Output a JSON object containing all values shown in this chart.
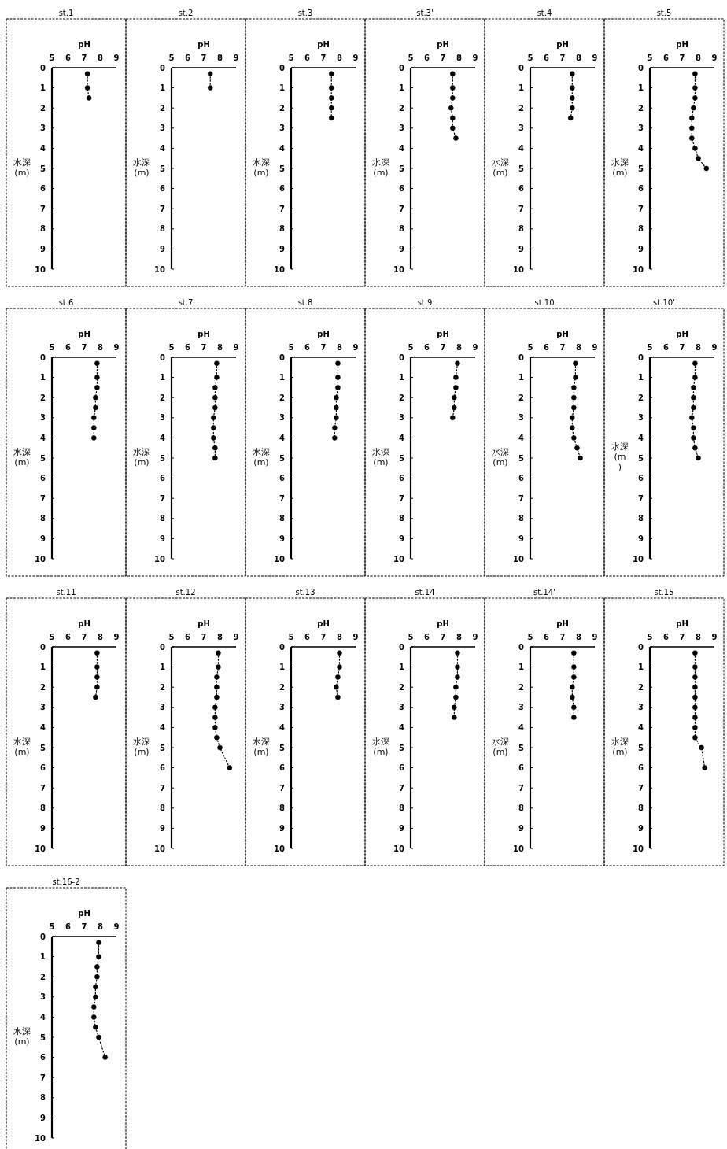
{
  "chart_data": [
    {
      "type": "line",
      "title": "st.1",
      "xlabel": "pH",
      "ylabel": "水深\n(m)",
      "xlim": [
        5,
        9
      ],
      "xticks": [
        5,
        6,
        7,
        8,
        9
      ],
      "ylim": [
        10,
        0
      ],
      "yticks": [
        0,
        1,
        2,
        3,
        4,
        5,
        6,
        7,
        8,
        9,
        10
      ],
      "marker": "circle",
      "line_style": "dotted",
      "series": [
        {
          "color": "#000000",
          "x": [
            7.2,
            7.2,
            7.3
          ],
          "values": [
            0.3,
            1,
            1.5
          ]
        }
      ]
    },
    {
      "type": "line",
      "title": "st.2",
      "xlabel": "pH",
      "ylabel": "水深\n(m)",
      "xlim": [
        5,
        9
      ],
      "xticks": [
        5,
        6,
        7,
        8,
        9
      ],
      "ylim": [
        10,
        0
      ],
      "yticks": [
        0,
        1,
        2,
        3,
        4,
        5,
        6,
        7,
        8,
        9,
        10
      ],
      "marker": "circle",
      "line_style": "dotted",
      "series": [
        {
          "color": "#000000",
          "x": [
            7.4,
            7.4
          ],
          "values": [
            0.3,
            1
          ]
        }
      ]
    },
    {
      "type": "line",
      "title": "st.3",
      "xlabel": "pH",
      "ylabel": "水深\n(m)",
      "xlim": [
        5,
        9
      ],
      "xticks": [
        5,
        6,
        7,
        8,
        9
      ],
      "ylim": [
        10,
        0
      ],
      "yticks": [
        0,
        1,
        2,
        3,
        4,
        5,
        6,
        7,
        8,
        9,
        10
      ],
      "marker": "circle",
      "line_style": "dotted",
      "series": [
        {
          "color": "#000000",
          "x": [
            7.5,
            7.5,
            7.5,
            7.5,
            7.5
          ],
          "values": [
            0.3,
            1,
            1.5,
            2,
            2.5
          ]
        }
      ]
    },
    {
      "type": "line",
      "title": "st.3'",
      "xlabel": "pH",
      "ylabel": "水深\n(m)",
      "xlim": [
        5,
        9
      ],
      "xticks": [
        5,
        6,
        7,
        8,
        9
      ],
      "ylim": [
        10,
        0
      ],
      "yticks": [
        0,
        1,
        2,
        3,
        4,
        5,
        6,
        7,
        8,
        9,
        10
      ],
      "marker": "circle",
      "line_style": "dotted",
      "series": [
        {
          "color": "#000000",
          "x": [
            7.6,
            7.6,
            7.6,
            7.5,
            7.6,
            7.6,
            7.8
          ],
          "values": [
            0.3,
            1,
            1.5,
            2,
            2.5,
            3,
            3.5
          ]
        }
      ]
    },
    {
      "type": "line",
      "title": "st.4",
      "xlabel": "pH",
      "ylabel": "水深\n(m)",
      "xlim": [
        5,
        9
      ],
      "xticks": [
        5,
        6,
        7,
        8,
        9
      ],
      "ylim": [
        10,
        0
      ],
      "yticks": [
        0,
        1,
        2,
        3,
        4,
        5,
        6,
        7,
        8,
        9,
        10
      ],
      "marker": "circle",
      "line_style": "dotted",
      "series": [
        {
          "color": "#000000",
          "x": [
            7.6,
            7.6,
            7.6,
            7.6,
            7.5
          ],
          "values": [
            0.3,
            1,
            1.5,
            2,
            2.5
          ]
        }
      ]
    },
    {
      "type": "line",
      "title": "st.5",
      "xlabel": "pH",
      "ylabel": "水深\n(m)",
      "xlim": [
        5,
        9
      ],
      "xticks": [
        5,
        6,
        7,
        8,
        9
      ],
      "ylim": [
        10,
        0
      ],
      "yticks": [
        0,
        1,
        2,
        3,
        4,
        5,
        6,
        7,
        8,
        9,
        10
      ],
      "marker": "circle",
      "line_style": "dotted",
      "series": [
        {
          "color": "#000000",
          "x": [
            7.8,
            7.8,
            7.8,
            7.7,
            7.6,
            7.6,
            7.6,
            7.8,
            8.0,
            8.5
          ],
          "values": [
            0.3,
            1,
            1.5,
            2,
            2.5,
            3,
            3.5,
            4,
            4.5,
            5
          ]
        }
      ]
    },
    {
      "type": "line",
      "title": "st.6",
      "xlabel": "pH",
      "ylabel": "水深\n(m)",
      "xlim": [
        5,
        9
      ],
      "xticks": [
        5,
        6,
        7,
        8,
        9
      ],
      "ylim": [
        10,
        0
      ],
      "yticks": [
        0,
        1,
        2,
        3,
        4,
        5,
        6,
        7,
        8,
        9,
        10
      ],
      "marker": "circle",
      "line_style": "dotted",
      "series": [
        {
          "color": "#000000",
          "x": [
            7.8,
            7.8,
            7.8,
            7.7,
            7.7,
            7.6,
            7.6,
            7.6
          ],
          "values": [
            0.3,
            1,
            1.5,
            2,
            2.5,
            3,
            3.5,
            4
          ]
        }
      ]
    },
    {
      "type": "line",
      "title": "st.7",
      "xlabel": "pH",
      "ylabel": "水深\n(m)",
      "xlim": [
        5,
        9
      ],
      "xticks": [
        5,
        6,
        7,
        8,
        9
      ],
      "ylim": [
        10,
        0
      ],
      "yticks": [
        0,
        1,
        2,
        3,
        4,
        5,
        6,
        7,
        8,
        9,
        10
      ],
      "marker": "circle",
      "line_style": "dotted",
      "series": [
        {
          "color": "#000000",
          "x": [
            7.8,
            7.8,
            7.7,
            7.7,
            7.7,
            7.6,
            7.6,
            7.6,
            7.7,
            7.7
          ],
          "values": [
            0.3,
            1,
            1.5,
            2,
            2.5,
            3,
            3.5,
            4,
            4.5,
            5
          ]
        }
      ]
    },
    {
      "type": "line",
      "title": "st.8",
      "xlabel": "pH",
      "ylabel": "水深\n(m)",
      "xlim": [
        5,
        9
      ],
      "xticks": [
        5,
        6,
        7,
        8,
        9
      ],
      "ylim": [
        10,
        0
      ],
      "yticks": [
        0,
        1,
        2,
        3,
        4,
        5,
        6,
        7,
        8,
        9,
        10
      ],
      "marker": "circle",
      "line_style": "dotted",
      "series": [
        {
          "color": "#000000",
          "x": [
            7.9,
            7.9,
            7.9,
            7.8,
            7.8,
            7.8,
            7.7,
            7.7
          ],
          "values": [
            0.3,
            1,
            1.5,
            2,
            2.5,
            3,
            3.5,
            4
          ]
        }
      ]
    },
    {
      "type": "line",
      "title": "st.9",
      "xlabel": "pH",
      "ylabel": "水深\n(m)",
      "xlim": [
        5,
        9
      ],
      "xticks": [
        5,
        6,
        7,
        8,
        9
      ],
      "ylim": [
        10,
        0
      ],
      "yticks": [
        0,
        1,
        2,
        3,
        4,
        5,
        6,
        7,
        8,
        9,
        10
      ],
      "marker": "circle",
      "line_style": "dotted",
      "series": [
        {
          "color": "#000000",
          "x": [
            7.9,
            7.8,
            7.8,
            7.7,
            7.7,
            7.6
          ],
          "values": [
            0.3,
            1,
            1.5,
            2,
            2.5,
            3
          ]
        }
      ]
    },
    {
      "type": "line",
      "title": "st.10",
      "xlabel": "pH",
      "ylabel": "水深\n(m)",
      "xlim": [
        5,
        9
      ],
      "xticks": [
        5,
        6,
        7,
        8,
        9
      ],
      "ylim": [
        10,
        0
      ],
      "yticks": [
        0,
        1,
        2,
        3,
        4,
        5,
        6,
        7,
        8,
        9,
        10
      ],
      "marker": "circle",
      "line_style": "dotted",
      "series": [
        {
          "color": "#000000",
          "x": [
            7.8,
            7.8,
            7.7,
            7.7,
            7.7,
            7.6,
            7.6,
            7.7,
            7.9,
            8.1
          ],
          "values": [
            0.3,
            1,
            1.5,
            2,
            2.5,
            3,
            3.5,
            4,
            4.5,
            5
          ]
        }
      ]
    },
    {
      "type": "line",
      "title": "st.10'",
      "xlabel": "pH",
      "ylabel": "水深\n(m\n)",
      "xlim": [
        5,
        9
      ],
      "xticks": [
        5,
        6,
        7,
        8,
        9
      ],
      "ylim": [
        10,
        0
      ],
      "yticks": [
        0,
        1,
        2,
        3,
        4,
        5,
        6,
        7,
        8,
        9,
        10
      ],
      "marker": "circle",
      "line_style": "dotted",
      "series": [
        {
          "color": "#000000",
          "x": [
            7.8,
            7.8,
            7.7,
            7.7,
            7.7,
            7.6,
            7.7,
            7.7,
            7.8,
            8.0
          ],
          "values": [
            0.3,
            1,
            1.5,
            2,
            2.5,
            3,
            3.5,
            4,
            4.5,
            5
          ]
        }
      ]
    },
    {
      "type": "line",
      "title": "st.11",
      "xlabel": "pH",
      "ylabel": "水深\n(m)",
      "xlim": [
        5,
        9
      ],
      "xticks": [
        5,
        6,
        7,
        8,
        9
      ],
      "ylim": [
        10,
        0
      ],
      "yticks": [
        0,
        1,
        2,
        3,
        4,
        5,
        6,
        7,
        8,
        9,
        10
      ],
      "marker": "circle",
      "line_style": "dotted",
      "series": [
        {
          "color": "#000000",
          "x": [
            7.8,
            7.8,
            7.8,
            7.8,
            7.7
          ],
          "values": [
            0.3,
            1,
            1.5,
            2,
            2.5
          ]
        }
      ]
    },
    {
      "type": "line",
      "title": "st.12",
      "xlabel": "pH",
      "ylabel": "水深\n(m)",
      "xlim": [
        5,
        9
      ],
      "xticks": [
        5,
        6,
        7,
        8,
        9
      ],
      "ylim": [
        10,
        0
      ],
      "yticks": [
        0,
        1,
        2,
        3,
        4,
        5,
        6,
        7,
        8,
        9,
        10
      ],
      "marker": "circle",
      "line_style": "dotted",
      "series": [
        {
          "color": "#000000",
          "x": [
            7.9,
            7.9,
            7.8,
            7.8,
            7.8,
            7.7,
            7.7,
            7.7,
            7.8,
            8.0,
            8.6
          ],
          "values": [
            0.3,
            1,
            1.5,
            2,
            2.5,
            3,
            3.5,
            4,
            4.5,
            5,
            6
          ]
        }
      ]
    },
    {
      "type": "line",
      "title": "st.13",
      "xlabel": "pH",
      "ylabel": "水深\n(m)",
      "xlim": [
        5,
        9
      ],
      "xticks": [
        5,
        6,
        7,
        8,
        9
      ],
      "ylim": [
        10,
        0
      ],
      "yticks": [
        0,
        1,
        2,
        3,
        4,
        5,
        6,
        7,
        8,
        9,
        10
      ],
      "marker": "circle",
      "line_style": "dotted",
      "series": [
        {
          "color": "#000000",
          "x": [
            8.0,
            8.0,
            7.9,
            7.8,
            7.9
          ],
          "values": [
            0.3,
            1,
            1.5,
            2,
            2.5
          ]
        }
      ]
    },
    {
      "type": "line",
      "title": "st.14",
      "xlabel": "pH",
      "ylabel": "水深\n(m)",
      "xlim": [
        5,
        9
      ],
      "xticks": [
        5,
        6,
        7,
        8,
        9
      ],
      "ylim": [
        10,
        0
      ],
      "yticks": [
        0,
        1,
        2,
        3,
        4,
        5,
        6,
        7,
        8,
        9,
        10
      ],
      "marker": "circle",
      "line_style": "dotted",
      "series": [
        {
          "color": "#000000",
          "x": [
            7.9,
            7.9,
            7.9,
            7.8,
            7.8,
            7.7,
            7.7
          ],
          "values": [
            0.3,
            1,
            1.5,
            2,
            2.5,
            3,
            3.5
          ]
        }
      ]
    },
    {
      "type": "line",
      "title": "st.14'",
      "xlabel": "pH",
      "ylabel": "水深\n(m)",
      "xlim": [
        5,
        9
      ],
      "xticks": [
        5,
        6,
        7,
        8,
        9
      ],
      "ylim": [
        10,
        0
      ],
      "yticks": [
        0,
        1,
        2,
        3,
        4,
        5,
        6,
        7,
        8,
        9,
        10
      ],
      "marker": "circle",
      "line_style": "dotted",
      "series": [
        {
          "color": "#000000",
          "x": [
            7.7,
            7.7,
            7.7,
            7.6,
            7.6,
            7.7,
            7.7
          ],
          "values": [
            0.3,
            1,
            1.5,
            2,
            2.5,
            3,
            3.5
          ]
        }
      ]
    },
    {
      "type": "line",
      "title": "st.15",
      "xlabel": "pH",
      "ylabel": "水深\n(m)",
      "xlim": [
        5,
        9
      ],
      "xticks": [
        5,
        6,
        7,
        8,
        9
      ],
      "ylim": [
        10,
        0
      ],
      "yticks": [
        0,
        1,
        2,
        3,
        4,
        5,
        6,
        7,
        8,
        9,
        10
      ],
      "marker": "circle",
      "line_style": "dotted",
      "series": [
        {
          "color": "#000000",
          "x": [
            7.8,
            7.8,
            7.8,
            7.8,
            7.8,
            7.8,
            7.8,
            7.8,
            7.8,
            8.2,
            8.4
          ],
          "values": [
            0.3,
            1,
            1.5,
            2,
            2.5,
            3,
            3.5,
            4,
            4.5,
            5,
            6
          ]
        }
      ]
    },
    {
      "type": "line",
      "title": "st.16-2",
      "xlabel": "pH",
      "ylabel": "水深\n(m)",
      "xlim": [
        5,
        9
      ],
      "xticks": [
        5,
        6,
        7,
        8,
        9
      ],
      "ylim": [
        10,
        0
      ],
      "yticks": [
        0,
        1,
        2,
        3,
        4,
        5,
        6,
        7,
        8,
        9,
        10
      ],
      "marker": "circle",
      "line_style": "dotted",
      "series": [
        {
          "color": "#000000",
          "x": [
            7.9,
            7.9,
            7.8,
            7.8,
            7.7,
            7.7,
            7.6,
            7.6,
            7.7,
            7.9,
            8.3
          ],
          "values": [
            0.3,
            1,
            1.5,
            2,
            2.5,
            3,
            3.5,
            4,
            4.5,
            5,
            6
          ]
        }
      ]
    }
  ]
}
